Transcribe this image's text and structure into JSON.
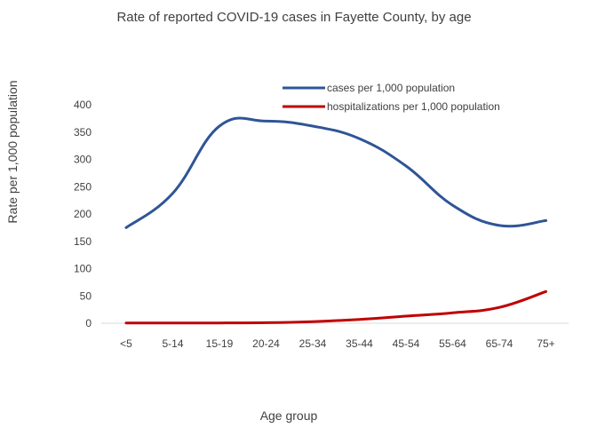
{
  "chart_data": {
    "type": "line",
    "title": "Rate of reported COVID-19 cases in Fayette County, by age",
    "xlabel": "Age group",
    "ylabel": "Rate per 1,000 population",
    "categories": [
      "<5",
      "5-14",
      "15-19",
      "20-24",
      "25-34",
      "35-44",
      "45-54",
      "55-64",
      "65-74",
      "75+"
    ],
    "ylim": [
      0,
      400
    ],
    "yticks": [
      0,
      50,
      100,
      150,
      200,
      250,
      300,
      350,
      400
    ],
    "grid": false,
    "legend_position": "top-right",
    "series": [
      {
        "name": "cases per 1,000 population",
        "color": "#2f5597",
        "values": [
          175,
          238,
          361,
          370,
          361,
          338,
          288,
          216,
          179,
          188
        ]
      },
      {
        "name": "hospitalizations per 1,000 population",
        "color": "#c00000",
        "values": [
          0.5,
          0.5,
          0.5,
          1,
          3,
          7,
          13,
          19,
          29,
          58
        ]
      }
    ]
  }
}
